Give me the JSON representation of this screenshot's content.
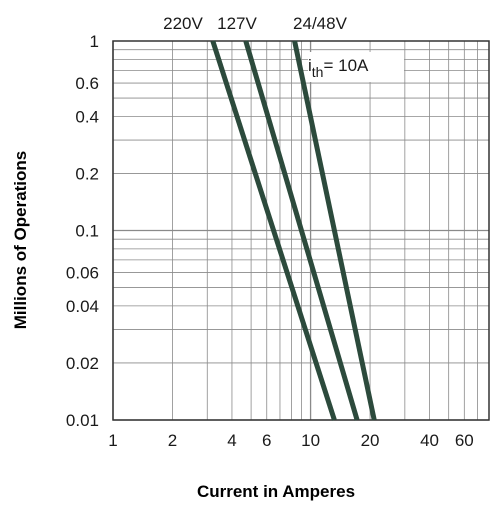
{
  "chart_data": {
    "type": "line",
    "title": "",
    "xlabel": "Current in Amperes",
    "ylabel": "Millions of Operations",
    "x_scale": "log",
    "y_scale": "log",
    "xlim": [
      1,
      80
    ],
    "ylim": [
      0.01,
      1
    ],
    "x_ticks": [
      {
        "value": 1,
        "label": "1"
      },
      {
        "value": 2,
        "label": "2"
      },
      {
        "value": 4,
        "label": "4"
      },
      {
        "value": 6,
        "label": "6"
      },
      {
        "value": 10,
        "label": "10"
      },
      {
        "value": 20,
        "label": "20"
      },
      {
        "value": 40,
        "label": "40"
      },
      {
        "value": 60,
        "label": "60"
      }
    ],
    "y_ticks": [
      {
        "value": 1,
        "label": "1"
      },
      {
        "value": 0.6,
        "label": "0.6"
      },
      {
        "value": 0.4,
        "label": "0.4"
      },
      {
        "value": 0.2,
        "label": "0.2"
      },
      {
        "value": 0.1,
        "label": "0.1"
      },
      {
        "value": 0.06,
        "label": "0.06"
      },
      {
        "value": 0.04,
        "label": "0.04"
      },
      {
        "value": 0.02,
        "label": "0.02"
      },
      {
        "value": 0.01,
        "label": "0.01"
      }
    ],
    "grid": true,
    "series": [
      {
        "name": "220V",
        "points": [
          [
            3.2,
            1
          ],
          [
            13.2,
            0.01
          ]
        ]
      },
      {
        "name": "127V",
        "points": [
          [
            4.7,
            1
          ],
          [
            17.2,
            0.01
          ]
        ]
      },
      {
        "name": "24/48V",
        "points": [
          [
            8.3,
            1
          ],
          [
            21.0,
            0.01
          ]
        ]
      }
    ],
    "annotation": {
      "prefix": "i",
      "subscript": "th",
      "suffix": "= 10A"
    },
    "line_color": "#2c4a3c",
    "grid_color": "#8a8a8a"
  }
}
